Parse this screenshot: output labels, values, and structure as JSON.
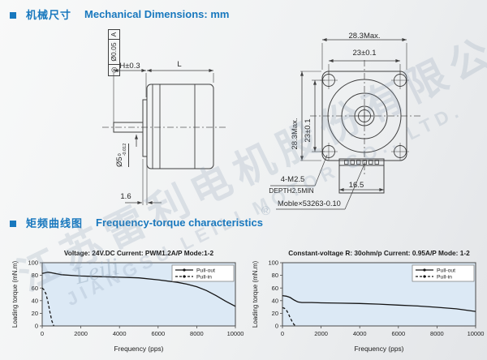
{
  "accent_color": "#1878be",
  "header1": {
    "zh": "机械尺寸",
    "en": "Mechanical Dimensions: mm"
  },
  "header2": {
    "zh": "矩频曲线图",
    "en": "Frequency-torque characteristics"
  },
  "drawing": {
    "side_view": {
      "tolerance_frame": {
        "symbol": "◎",
        "value": "Ø0.05",
        "datum": "A"
      },
      "dim_shaft_extension": "H±0.3",
      "dim_body_length": "L",
      "dim_shaft_dia_base": "Ø5",
      "dim_shaft_dia_sup": "0",
      "dim_shaft_dia_sub": "-0.012",
      "dim_boss_thickness": "1.6"
    },
    "front_view": {
      "dim_width_max": "28.3Max.",
      "dim_hole_spacing_h": "23±0.1",
      "dim_height_max": "28.3Max.",
      "dim_hole_spacing_v": "23±0.1",
      "screw_note_line1": "4-M2.5",
      "screw_note_line2": "DEPTH2.5MIN",
      "dim_connector_width": "16.5",
      "connector_note": "Moble×53263-0.10"
    }
  },
  "watermark": {
    "zh": "江苏雷利电机股份有限公司",
    "en": "JIANGSU LEILI MOTOR CO., LTD.",
    "script": "Leili",
    "registered": "®"
  },
  "chart_data": [
    {
      "type": "line",
      "title": "Voltage: 24V.DC Current: PWM1.2A/P Mode:1-2",
      "xlabel": "Frequency (pps)",
      "ylabel": "Loading torque (mN.m)",
      "xlim": [
        0,
        10000
      ],
      "ylim": [
        0,
        100
      ],
      "xticks": [
        0,
        2000,
        4000,
        6000,
        8000,
        10000
      ],
      "yticks": [
        0,
        20,
        40,
        60,
        80,
        100
      ],
      "grid": false,
      "legend_position": "top-right",
      "plot_bg": "#dce9f5",
      "series": [
        {
          "name": "Pull-out",
          "style": "solid",
          "x": [
            0,
            300,
            500,
            1000,
            1500,
            2000,
            3000,
            4000,
            5000,
            6000,
            7000,
            7500,
            8000,
            8500,
            9000,
            9500,
            10000
          ],
          "y": [
            83,
            85,
            84,
            81,
            80,
            79,
            78,
            77,
            76,
            73,
            69,
            66,
            62,
            56,
            48,
            39,
            31
          ]
        },
        {
          "name": "Pull-in",
          "style": "dashed",
          "x": [
            0,
            100,
            200,
            300,
            400,
            500,
            600
          ],
          "y": [
            60,
            57,
            50,
            38,
            22,
            8,
            0
          ]
        }
      ]
    },
    {
      "type": "line",
      "title": "Constant-voltage R: 30ohm/p Current: 0.95A/P Mode: 1-2",
      "xlabel": "Frequency (pps)",
      "ylabel": "Loading torque (mN.m)",
      "xlim": [
        0,
        10000
      ],
      "ylim": [
        0,
        100
      ],
      "xticks": [
        0,
        2000,
        4000,
        6000,
        8000,
        10000
      ],
      "yticks": [
        0,
        20,
        40,
        60,
        80,
        100
      ],
      "grid": false,
      "legend_position": "top-right",
      "plot_bg": "#dce9f5",
      "series": [
        {
          "name": "Pull-out",
          "style": "solid",
          "x": [
            0,
            200,
            400,
            600,
            800,
            1000,
            1500,
            2000,
            3000,
            4000,
            5000,
            6000,
            7000,
            8000,
            9000,
            10000
          ],
          "y": [
            48,
            47,
            45,
            41,
            38,
            37,
            37,
            36.5,
            36,
            35.5,
            34.5,
            33,
            31.5,
            29.5,
            27,
            23
          ]
        },
        {
          "name": "Pull-in",
          "style": "dashed",
          "x": [
            0,
            100,
            200,
            300,
            400,
            500,
            600,
            700
          ],
          "y": [
            29,
            28,
            25,
            20,
            13,
            7,
            2,
            0
          ]
        }
      ]
    }
  ]
}
